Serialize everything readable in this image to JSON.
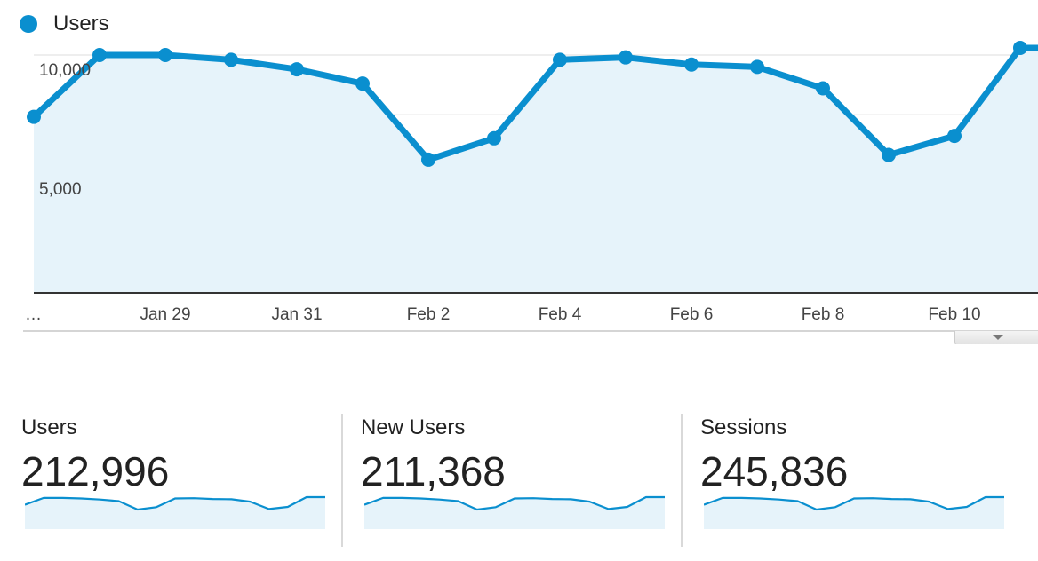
{
  "accent_color": "#0a8fcf",
  "legend": {
    "label": "Users",
    "icon": "legend-dot-icon"
  },
  "toggle": {
    "icon": "chevron-down-icon"
  },
  "chart_data": {
    "type": "area",
    "series": [
      {
        "name": "Users",
        "values": [
          7400,
          10000,
          10000,
          9800,
          9400,
          8800,
          5600,
          6500,
          9800,
          9900,
          9600,
          9500,
          8600,
          5800,
          6600,
          10300,
          10300
        ]
      }
    ],
    "x": [
      "Jan 27",
      "Jan 28",
      "Jan 29",
      "Jan 30",
      "Jan 31",
      "Feb 1",
      "Feb 2",
      "Feb 3",
      "Feb 4",
      "Feb 5",
      "Feb 6",
      "Feb 7",
      "Feb 8",
      "Feb 9",
      "Feb 10",
      "Feb 11",
      "Feb 12"
    ],
    "x_tick_labels": [
      {
        "index": 0,
        "label": "…"
      },
      {
        "index": 2,
        "label": "Jan 29"
      },
      {
        "index": 4,
        "label": "Jan 31"
      },
      {
        "index": 6,
        "label": "Feb 2"
      },
      {
        "index": 8,
        "label": "Feb 4"
      },
      {
        "index": 10,
        "label": "Feb 6"
      },
      {
        "index": 12,
        "label": "Feb 8"
      },
      {
        "index": 14,
        "label": "Feb 10"
      }
    ],
    "y_ticks": [
      {
        "value": 10000,
        "label": "10,000"
      },
      {
        "value": 5000,
        "label": "5,000"
      }
    ],
    "ylim": [
      0,
      10000
    ],
    "grid": true
  },
  "metrics": [
    {
      "label": "Users",
      "value": "212,996"
    },
    {
      "label": "New Users",
      "value": "211,368"
    },
    {
      "label": "Sessions",
      "value": "245,836"
    }
  ]
}
